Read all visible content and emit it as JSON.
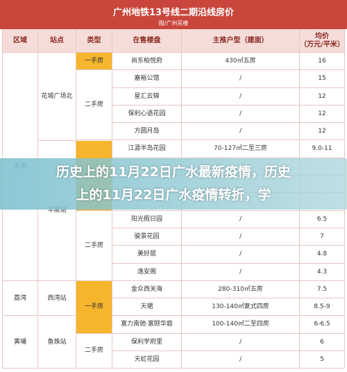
{
  "header": {
    "title": "广州地铁13号线二期沿线房价",
    "subtitle": "图/广州买楼"
  },
  "table": {
    "columns": [
      "区域",
      "站点",
      "类型",
      "在售楼盘",
      "主推户型（建面）",
      "均价\n（万元/平米）"
    ],
    "districts": [
      "天河",
      "荔湾",
      "黄埔"
    ],
    "stations": [
      "花城广场北",
      "车陂站",
      "西湾站",
      "鱼珠站"
    ],
    "types": [
      "一手房",
      "二手房",
      "二手房",
      "一手房",
      "二手房"
    ],
    "upper_rows": [
      [
        "尚东柏悦府",
        "430㎡五房",
        "16"
      ],
      [
        "嘉裕公馆",
        "/",
        "15"
      ],
      [
        "星汇云锦",
        "/",
        "12"
      ],
      [
        "保利心语花园",
        "/",
        "12"
      ],
      [
        "方圆月岛",
        "/",
        "12"
      ],
      [
        "江源半岛花园",
        "70-127㎡二至三房",
        "9.0-11"
      ]
    ],
    "lower_rows": [
      [
        "阳光假日园",
        "/",
        "6.5"
      ],
      [
        "骏景花园",
        "/",
        "7"
      ],
      [
        "美好居",
        "/",
        "4.8"
      ],
      [
        "逸安阁",
        "/",
        "4.3"
      ],
      [
        "金众西关海",
        "280-310㎡五房",
        "7.5"
      ],
      [
        "天珺",
        "130-140㎡复式四房",
        "8.5-9"
      ],
      [
        "富力南驰·富颐华庭",
        "100-140㎡二至四房",
        "6-6.5"
      ],
      [
        "保利学府里",
        "/",
        "6"
      ],
      [
        "天虹花园",
        "/",
        "5"
      ]
    ]
  },
  "overlay_text": [
    "历史上的11月22日广水最新疫情，历史",
    "上的11月22日广水疫情转折，学"
  ]
}
